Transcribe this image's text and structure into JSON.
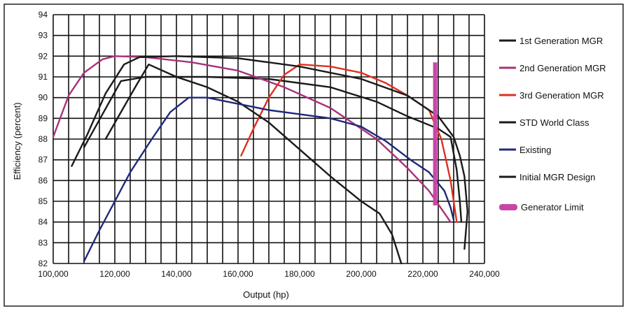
{
  "chart_data": {
    "type": "line",
    "title": "",
    "xlabel": "Output (hp)",
    "ylabel": "Efficiency (percent)",
    "xlim": [
      100000,
      240000
    ],
    "ylim": [
      82,
      94
    ],
    "x_ticks": [
      {
        "value": 100000,
        "label": "100,000"
      },
      {
        "value": 120000,
        "label": "120,000"
      },
      {
        "value": 140000,
        "label": "140,000"
      },
      {
        "value": 160000,
        "label": "160,000"
      },
      {
        "value": 180000,
        "label": "180,000"
      },
      {
        "value": 200000,
        "label": "200,000"
      },
      {
        "value": 220000,
        "label": "220,000"
      },
      {
        "value": 240000,
        "label": "240,000"
      }
    ],
    "y_ticks": [
      {
        "value": 82,
        "label": "82"
      },
      {
        "value": 83,
        "label": "83"
      },
      {
        "value": 84,
        "label": "84"
      },
      {
        "value": 85,
        "label": "85"
      },
      {
        "value": 86,
        "label": "86"
      },
      {
        "value": 87,
        "label": "87"
      },
      {
        "value": 88,
        "label": "88"
      },
      {
        "value": 89,
        "label": "89"
      },
      {
        "value": 90,
        "label": "90"
      },
      {
        "value": 91,
        "label": "91"
      },
      {
        "value": 92,
        "label": "92"
      },
      {
        "value": 93,
        "label": "93"
      },
      {
        "value": 94,
        "label": "94"
      }
    ],
    "grid": true,
    "legend_position": "right",
    "series": [
      {
        "name": "1st Generation MGR",
        "color": "#1a1a1a",
        "points": [
          [
            110000,
            87.6
          ],
          [
            116000,
            89.2
          ],
          [
            122000,
            90.8
          ],
          [
            130000,
            91.0
          ],
          [
            150000,
            91.0
          ],
          [
            170000,
            90.9
          ],
          [
            190000,
            90.5
          ],
          [
            205000,
            89.8
          ],
          [
            215000,
            89.1
          ],
          [
            225000,
            88.5
          ],
          [
            229000,
            88.1
          ],
          [
            231000,
            86.5
          ],
          [
            232000,
            85.0
          ],
          [
            232500,
            84.0
          ]
        ]
      },
      {
        "name": "2nd Generation MGR",
        "color": "#a8327a",
        "points": [
          [
            100000,
            88.1
          ],
          [
            105000,
            90.1
          ],
          [
            110000,
            91.2
          ],
          [
            116000,
            91.85
          ],
          [
            120000,
            92.0
          ],
          [
            130000,
            91.95
          ],
          [
            145000,
            91.7
          ],
          [
            160000,
            91.3
          ],
          [
            175000,
            90.5
          ],
          [
            190000,
            89.5
          ],
          [
            205000,
            88.0
          ],
          [
            215000,
            86.6
          ],
          [
            222000,
            85.5
          ],
          [
            229000,
            84.0
          ]
        ]
      },
      {
        "name": "3rd Generation MGR",
        "color": "#e0301e",
        "points": [
          [
            161000,
            87.2
          ],
          [
            165000,
            88.5
          ],
          [
            170000,
            90.0
          ],
          [
            175000,
            91.1
          ],
          [
            180000,
            91.6
          ],
          [
            190000,
            91.5
          ],
          [
            200000,
            91.2
          ],
          [
            208000,
            90.7
          ],
          [
            215000,
            90.1
          ],
          [
            222000,
            89.4
          ],
          [
            226000,
            88.0
          ],
          [
            229000,
            86.0
          ],
          [
            231000,
            84.0
          ]
        ]
      },
      {
        "name": "STD World Class",
        "color": "#1a1a1a",
        "points": [
          [
            117000,
            88.0
          ],
          [
            122000,
            89.3
          ],
          [
            127000,
            90.6
          ],
          [
            131000,
            91.6
          ],
          [
            140000,
            91.0
          ],
          [
            150000,
            90.5
          ],
          [
            160000,
            89.8
          ],
          [
            170000,
            88.8
          ],
          [
            180000,
            87.5
          ],
          [
            190000,
            86.2
          ],
          [
            200000,
            85.0
          ],
          [
            206000,
            84.4
          ],
          [
            210000,
            83.4
          ],
          [
            213000,
            82.0
          ]
        ]
      },
      {
        "name": "Existing",
        "color": "#1f2a7a",
        "points": [
          [
            110000,
            82.1
          ],
          [
            115000,
            83.6
          ],
          [
            120000,
            85.0
          ],
          [
            125000,
            86.4
          ],
          [
            132000,
            88.0
          ],
          [
            138000,
            89.3
          ],
          [
            144000,
            90.0
          ],
          [
            150000,
            90.0
          ],
          [
            160000,
            89.7
          ],
          [
            170000,
            89.4
          ],
          [
            180000,
            89.2
          ],
          [
            190000,
            89.0
          ],
          [
            200000,
            88.6
          ],
          [
            208000,
            87.9
          ],
          [
            216000,
            87.0
          ],
          [
            222000,
            86.4
          ],
          [
            227000,
            85.5
          ],
          [
            229000,
            84.7
          ],
          [
            230000,
            84.1
          ]
        ]
      },
      {
        "name": "Initial MGR Design",
        "color": "#1a1a1a",
        "points": [
          [
            106000,
            86.7
          ],
          [
            111000,
            88.2
          ],
          [
            117000,
            90.2
          ],
          [
            123000,
            91.6
          ],
          [
            128000,
            91.95
          ],
          [
            140000,
            92.0
          ],
          [
            160000,
            91.9
          ],
          [
            180000,
            91.5
          ],
          [
            200000,
            90.9
          ],
          [
            215000,
            90.1
          ],
          [
            225000,
            89.1
          ],
          [
            230000,
            88.1
          ],
          [
            232000,
            87.2
          ],
          [
            233500,
            86.2
          ],
          [
            234500,
            84.5
          ],
          [
            233500,
            82.7
          ]
        ]
      }
    ],
    "generator_limit": {
      "name": "Generator Limit",
      "color": "#c846a8",
      "x": 224000,
      "y_from": 84.8,
      "y_to": 91.7
    }
  }
}
